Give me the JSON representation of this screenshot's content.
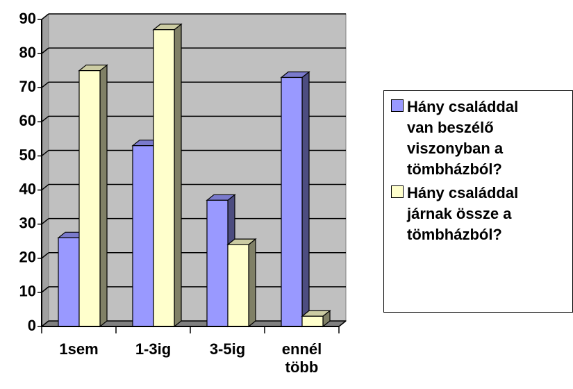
{
  "chart_data": {
    "type": "bar",
    "categories": [
      "1sem",
      "1-3ig",
      "3-5ig",
      "ennél több"
    ],
    "series": [
      {
        "name": "Hány családdal van beszélő viszonyban a tömbházból?",
        "color": "#9999ff",
        "values": [
          26,
          53,
          37,
          73
        ]
      },
      {
        "name": "Hány családdal járnak össze a tömbházból?",
        "color": "#ffffcc",
        "values": [
          75,
          87,
          24,
          3
        ]
      }
    ],
    "ylim": [
      0,
      90
    ],
    "yticks": [
      0,
      10,
      20,
      30,
      40,
      50,
      60,
      70,
      80,
      90
    ],
    "grid": true
  }
}
